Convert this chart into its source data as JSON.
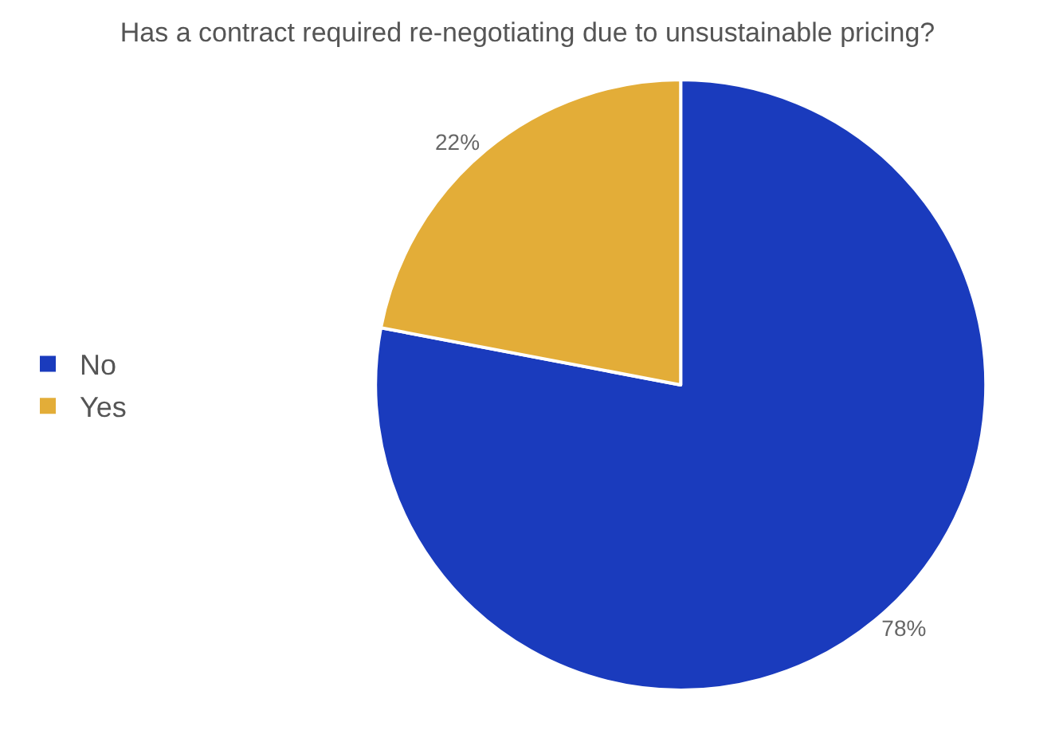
{
  "chart_data": {
    "type": "pie",
    "title": "Has a contract required re-negotiating due to unsustainable pricing?",
    "categories": [
      "No",
      "Yes"
    ],
    "values": [
      78,
      22
    ],
    "colors": [
      "#1a3bbd",
      "#e3ad38"
    ],
    "value_labels": [
      "78%",
      "22%"
    ],
    "legend": "left"
  }
}
